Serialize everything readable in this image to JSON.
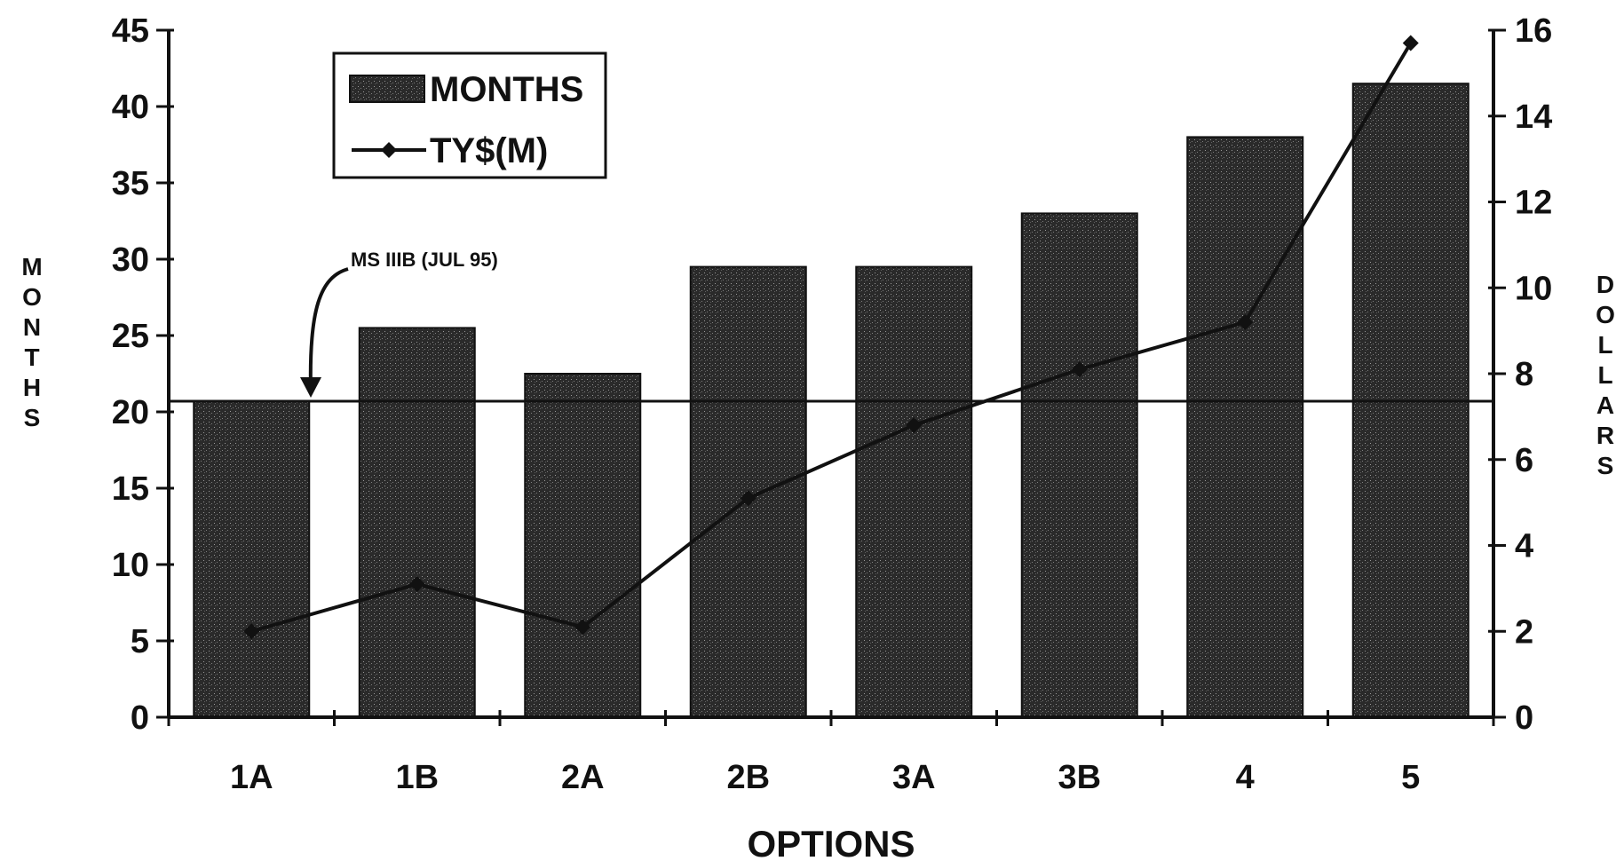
{
  "chart_data": {
    "type": "bar",
    "title": "",
    "categories": [
      "1A",
      "1B",
      "2A",
      "2B",
      "3A",
      "3B",
      "4",
      "5"
    ],
    "series": [
      {
        "name": "MONTHS",
        "type": "bar",
        "axis": "left",
        "values": [
          20.7,
          25.5,
          22.5,
          29.5,
          29.5,
          33,
          38,
          41.5
        ]
      },
      {
        "name": "TY$(M)",
        "type": "line",
        "axis": "right",
        "values": [
          2,
          3.1,
          2.1,
          5.1,
          6.8,
          8.1,
          9.2,
          15.7
        ]
      }
    ],
    "xlabel": "OPTIONS",
    "ylabel": "MONTHS",
    "y2label": "DOLLARS",
    "ylim": [
      0,
      45
    ],
    "y2lim": [
      0,
      16
    ],
    "yticks": [
      0,
      5,
      10,
      15,
      20,
      25,
      30,
      35,
      40,
      45
    ],
    "y2ticks": [
      0,
      2,
      4,
      6,
      8,
      10,
      12,
      14,
      16
    ],
    "reference_line": {
      "value": 20.7,
      "axis": "left",
      "label": "MS IIIB (JUL 95)"
    },
    "legend_position": "top-left",
    "grid": false,
    "colors": {
      "bars": "#2a2a2a",
      "line": "#111111",
      "axes": "#111111"
    }
  }
}
